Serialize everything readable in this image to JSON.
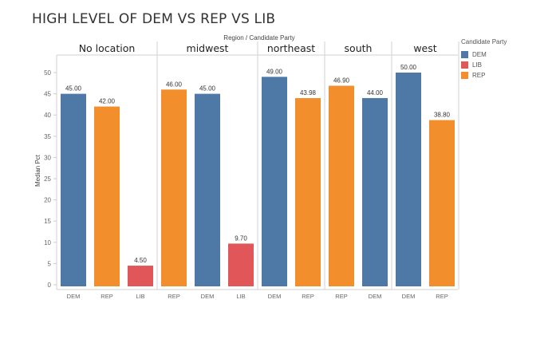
{
  "title": "HIGH LEVEL OF DEM VS REP VS LIB",
  "chart_data": {
    "type": "bar",
    "header_label": "Region  /  Candidate Party",
    "ylabel": "Median Pct",
    "ylim": [
      0,
      52
    ],
    "yticks": [
      0,
      5,
      10,
      15,
      20,
      25,
      30,
      35,
      40,
      45,
      50
    ],
    "grid": false,
    "legend_position": "right",
    "colors": {
      "DEM": "#4e79a7",
      "LIB": "#e15759",
      "REP": "#f28e2b"
    },
    "legend": {
      "title": "Candidate Party",
      "items": [
        "DEM",
        "LIB",
        "REP"
      ]
    },
    "panels": [
      {
        "region": "No location",
        "bars": [
          {
            "party": "DEM",
            "value": 45,
            "label": "45.00"
          },
          {
            "party": "REP",
            "value": 42,
            "label": "42.00"
          },
          {
            "party": "LIB",
            "value": 4.5,
            "label": "4.50"
          }
        ]
      },
      {
        "region": "midwest",
        "bars": [
          {
            "party": "REP",
            "value": 46,
            "label": "46.00"
          },
          {
            "party": "DEM",
            "value": 45,
            "label": "45.00"
          },
          {
            "party": "LIB",
            "value": 9.7,
            "label": "9.70"
          }
        ]
      },
      {
        "region": "northeast",
        "bars": [
          {
            "party": "DEM",
            "value": 49,
            "label": "49.00"
          },
          {
            "party": "REP",
            "value": 43.98,
            "label": "43.98"
          }
        ]
      },
      {
        "region": "south",
        "bars": [
          {
            "party": "REP",
            "value": 46.9,
            "label": "46.90"
          },
          {
            "party": "DEM",
            "value": 44,
            "label": "44.00"
          }
        ]
      },
      {
        "region": "west",
        "bars": [
          {
            "party": "DEM",
            "value": 50,
            "label": "50.00"
          },
          {
            "party": "REP",
            "value": 38.8,
            "label": "38.80"
          }
        ]
      }
    ]
  }
}
